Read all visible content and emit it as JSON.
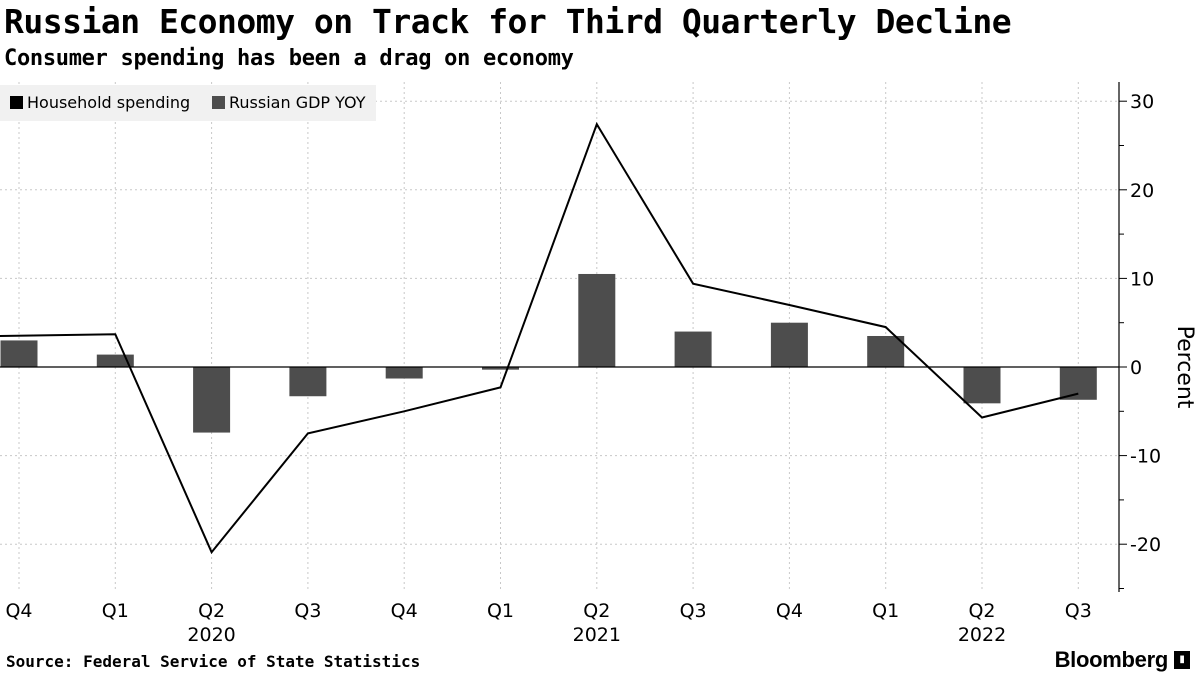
{
  "title": "Russian Economy on Track for Third Quarterly Decline",
  "subtitle": "Consumer spending has been a drag on economy",
  "source": "Source: Federal Service of State Statistics",
  "brand": "Bloomberg",
  "chart_data": {
    "type": "bar",
    "categories": [
      "Q4",
      "Q1",
      "Q2",
      "Q3",
      "Q4",
      "Q1",
      "Q2",
      "Q3",
      "Q4",
      "Q1",
      "Q2",
      "Q3"
    ],
    "years": [
      {
        "label": "2020",
        "index": 2
      },
      {
        "label": "2021",
        "index": 6
      },
      {
        "label": "2022",
        "index": 10
      }
    ],
    "series": [
      {
        "name": "Household spending",
        "type": "line",
        "color": "#000000",
        "values": [
          3.5,
          3.7,
          -20.9,
          -7.5,
          -5.0,
          -2.3,
          27.4,
          9.4,
          7.0,
          4.5,
          -5.7,
          -3.0
        ]
      },
      {
        "name": "Russian GDP YOY",
        "type": "bar",
        "color": "#4d4d4d",
        "values": [
          3.0,
          1.4,
          -7.4,
          -3.3,
          -1.3,
          -0.3,
          10.5,
          4.0,
          5.0,
          3.5,
          -4.1,
          -3.7
        ]
      }
    ],
    "ylabel": "Percent",
    "ylim": [
      -25,
      32
    ],
    "yticks": [
      30,
      20,
      10,
      0,
      -10,
      -20
    ],
    "grid": true,
    "legend_position": "top-left"
  }
}
